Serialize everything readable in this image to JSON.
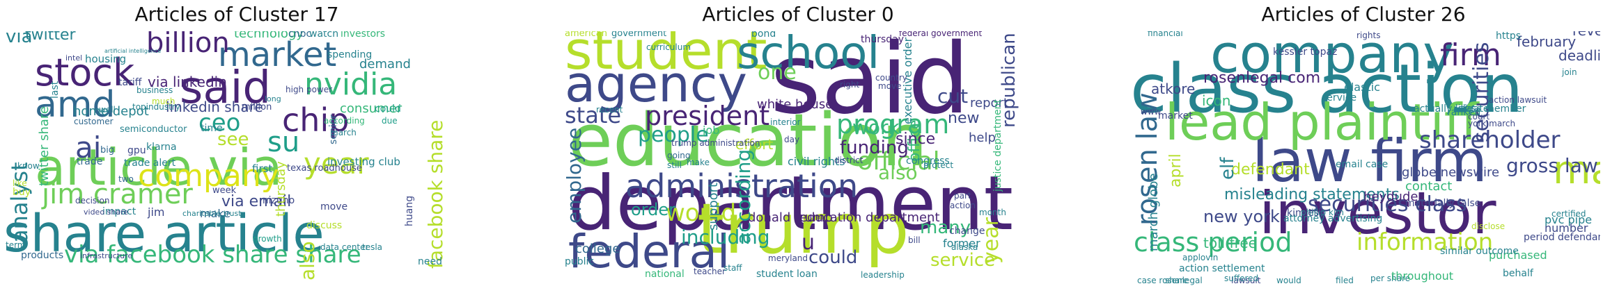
{
  "palette": {
    "dark_purple": "#482475",
    "indigo": "#3e4989",
    "blue": "#31688e",
    "teal": "#26828e",
    "green_teal": "#1f9e89",
    "green": "#35b779",
    "light_green": "#6ece58",
    "yellow_green": "#b5de2b",
    "yellow": "#dde318"
  },
  "panels": [
    {
      "title": "Articles of Cluster 17",
      "words": [
        {
          "text": "share article",
          "c": "teal"
        },
        {
          "text": "article via",
          "c": "light_green"
        },
        {
          "text": "said",
          "c": "dark_purple"
        },
        {
          "text": "stock",
          "c": "dark_purple"
        },
        {
          "text": "market",
          "c": "blue"
        },
        {
          "text": "amd",
          "c": "blue"
        },
        {
          "text": "nvidia",
          "c": "green"
        },
        {
          "text": "billion",
          "c": "dark_purple"
        },
        {
          "text": "chip",
          "c": "dark_purple"
        },
        {
          "text": "company",
          "c": "yellow"
        },
        {
          "text": "via facebook share share",
          "c": "green"
        },
        {
          "text": "ai",
          "c": "indigo"
        },
        {
          "text": "jim cramer",
          "c": "light_green"
        },
        {
          "text": "year",
          "c": "yellow_green"
        },
        {
          "text": "su",
          "c": "green_teal"
        },
        {
          "text": "analyst",
          "c": "teal"
        },
        {
          "text": "facebook share",
          "c": "yellow_green"
        },
        {
          "text": "ceo",
          "c": "green_teal"
        },
        {
          "text": "via",
          "c": "teal"
        },
        {
          "text": "twitter",
          "c": "teal"
        },
        {
          "text": "via linkedin",
          "c": "dark_purple"
        },
        {
          "text": "linkedin share",
          "c": "indigo"
        },
        {
          "text": "technology",
          "c": "green"
        },
        {
          "text": "cnbc",
          "c": "blue"
        },
        {
          "text": "watch",
          "c": "teal"
        },
        {
          "text": "investors",
          "c": "green"
        },
        {
          "text": "demand",
          "c": "teal"
        },
        {
          "text": "consumer",
          "c": "green"
        },
        {
          "text": "home depot",
          "c": "teal"
        },
        {
          "text": "see",
          "c": "yellow_green"
        },
        {
          "text": "via email",
          "c": "indigo"
        },
        {
          "text": "investing club",
          "c": "teal"
        },
        {
          "text": "texas roadhouse",
          "c": "indigo"
        },
        {
          "text": "first",
          "c": "teal"
        },
        {
          "text": "trade alert",
          "c": "teal"
        },
        {
          "text": "trade",
          "c": "blue"
        },
        {
          "text": "gpu",
          "c": "indigo"
        },
        {
          "text": "jim",
          "c": "indigo"
        },
        {
          "text": "make",
          "c": "blue"
        },
        {
          "text": "also",
          "c": "yellow_green"
        },
        {
          "text": "mizuho",
          "c": "indigo"
        },
        {
          "text": "thursday",
          "c": "yellow_green"
        },
        {
          "text": "twitter share",
          "c": "green"
        },
        {
          "text": "housing",
          "c": "teal"
        },
        {
          "text": "intel",
          "c": "indigo"
        },
        {
          "text": "tariff",
          "c": "indigo"
        },
        {
          "text": "business",
          "c": "teal"
        },
        {
          "text": "topindustry",
          "c": "teal"
        },
        {
          "text": "million",
          "c": "indigo"
        },
        {
          "text": "time",
          "c": "teal"
        },
        {
          "text": "semiconductor",
          "c": "teal"
        },
        {
          "text": "customer",
          "c": "blue"
        },
        {
          "text": "march",
          "c": "teal"
        },
        {
          "text": "according",
          "c": "green"
        },
        {
          "text": "senior",
          "c": "blue"
        },
        {
          "text": "spending",
          "c": "teal"
        },
        {
          "text": "could",
          "c": "green_teal"
        },
        {
          "text": "due",
          "c": "green_teal"
        },
        {
          "text": "huang",
          "c": "indigo"
        },
        {
          "text": "growth",
          "c": "green_teal"
        },
        {
          "text": "week",
          "c": "indigo"
        },
        {
          "text": "need",
          "c": "teal"
        },
        {
          "text": "products",
          "c": "blue"
        },
        {
          "text": "term",
          "c": "teal"
        },
        {
          "text": "impact",
          "c": "teal"
        },
        {
          "text": "big",
          "c": "blue"
        },
        {
          "text": "two",
          "c": "blue"
        },
        {
          "text": "decision",
          "c": "indigo"
        },
        {
          "text": "last",
          "c": "teal"
        },
        {
          "text": "know",
          "c": "teal"
        },
        {
          "text": "buy",
          "c": "yellow_green"
        },
        {
          "text": "like",
          "c": "yellow_green"
        },
        {
          "text": "well",
          "c": "teal"
        },
        {
          "text": "much",
          "c": "yellow_green"
        },
        {
          "text": "high power",
          "c": "indigo"
        },
        {
          "text": "long",
          "c": "teal"
        },
        {
          "text": "move",
          "c": "indigo"
        },
        {
          "text": "discuss",
          "c": "yellow_green"
        },
        {
          "text": "artificial intelligence",
          "c": "teal"
        },
        {
          "text": "klarna",
          "c": "teal"
        },
        {
          "text": "charitable trust",
          "c": "teal"
        },
        {
          "text": "video share",
          "c": "indigo"
        },
        {
          "text": "infrastructure",
          "c": "indigo"
        },
        {
          "text": "data center",
          "c": "teal"
        },
        {
          "text": "tesla",
          "c": "teal"
        }
      ]
    },
    {
      "title": "Articles of Cluster 0",
      "words": [
        {
          "text": "said",
          "c": "dark_purple"
        },
        {
          "text": "department",
          "c": "dark_purple"
        },
        {
          "text": "education",
          "c": "light_green"
        },
        {
          "text": "trump",
          "c": "yellow_green"
        },
        {
          "text": "student",
          "c": "yellow_green"
        },
        {
          "text": "agency",
          "c": "indigo"
        },
        {
          "text": "school",
          "c": "teal"
        },
        {
          "text": "federal",
          "c": "indigo"
        },
        {
          "text": "administration",
          "c": "indigo"
        },
        {
          "text": "state",
          "c": "indigo"
        },
        {
          "text": "president",
          "c": "dark_purple"
        },
        {
          "text": "program",
          "c": "green"
        },
        {
          "text": "official",
          "c": "light_green"
        },
        {
          "text": "employee",
          "c": "blue"
        },
        {
          "text": "people",
          "c": "green_teal"
        },
        {
          "text": "would",
          "c": "yellow_green"
        },
        {
          "text": "including",
          "c": "green_teal"
        },
        {
          "text": "order",
          "c": "green_teal"
        },
        {
          "text": "funding",
          "c": "dark_purple"
        },
        {
          "text": "cut",
          "c": "indigo"
        },
        {
          "text": "also",
          "c": "light_green"
        },
        {
          "text": "year",
          "c": "yellow_green"
        },
        {
          "text": "work",
          "c": "green"
        },
        {
          "text": "one",
          "c": "light_green"
        },
        {
          "text": "new",
          "c": "indigo"
        },
        {
          "text": "many",
          "c": "green"
        },
        {
          "text": "could",
          "c": "indigo"
        },
        {
          "text": "service",
          "c": "yellow_green"
        },
        {
          "text": "u",
          "c": "dark_purple"
        },
        {
          "text": "white house",
          "c": "dark_purple"
        },
        {
          "text": "donald trump",
          "c": "dark_purple"
        },
        {
          "text": "education department",
          "c": "dark_purple"
        },
        {
          "text": "office",
          "c": "green"
        },
        {
          "text": "executive order",
          "c": "teal"
        },
        {
          "text": "support",
          "c": "teal"
        },
        {
          "text": "college",
          "c": "blue"
        },
        {
          "text": "public",
          "c": "teal"
        },
        {
          "text": "according",
          "c": "green_teal"
        },
        {
          "text": "republican",
          "c": "indigo"
        },
        {
          "text": "since",
          "c": "dark_purple"
        },
        {
          "text": "report",
          "c": "indigo"
        },
        {
          "text": "help",
          "c": "indigo"
        },
        {
          "text": "american",
          "c": "yellow_green"
        },
        {
          "text": "government",
          "c": "teal"
        },
        {
          "text": "bond",
          "c": "teal"
        },
        {
          "text": "thursday",
          "c": "dark_purple"
        },
        {
          "text": "federal government",
          "c": "dark_purple"
        },
        {
          "text": "effort",
          "c": "yellow_green"
        },
        {
          "text": "job",
          "c": "green"
        },
        {
          "text": "justice department",
          "c": "green"
        },
        {
          "text": "congress",
          "c": "teal"
        },
        {
          "text": "civil rights",
          "c": "teal"
        },
        {
          "text": "trump administration",
          "c": "indigo"
        },
        {
          "text": "student loan",
          "c": "teal"
        },
        {
          "text": "national",
          "c": "green"
        },
        {
          "text": "former",
          "c": "teal"
        },
        {
          "text": "change",
          "c": "indigo"
        },
        {
          "text": "protect",
          "c": "teal"
        },
        {
          "text": "move",
          "c": "indigo"
        },
        {
          "text": "day",
          "c": "indigo"
        },
        {
          "text": "district",
          "c": "indigo"
        },
        {
          "text": "meryland",
          "c": "indigo"
        },
        {
          "text": "teacher",
          "c": "indigo"
        },
        {
          "text": "staff",
          "c": "teal"
        },
        {
          "text": "going",
          "c": "blue"
        },
        {
          "text": "interior",
          "c": "teal"
        },
        {
          "text": "country",
          "c": "indigo"
        },
        {
          "text": "recent",
          "c": "teal"
        },
        {
          "text": "right",
          "c": "indigo"
        },
        {
          "text": "curriculum",
          "c": "teal"
        },
        {
          "text": "alaska",
          "c": "teal"
        },
        {
          "text": "make",
          "c": "teal"
        },
        {
          "text": "still",
          "c": "teal"
        },
        {
          "text": "action",
          "c": "indigo"
        },
        {
          "text": "bill",
          "c": "indigo"
        },
        {
          "text": "part",
          "c": "indigo"
        },
        {
          "text": "month",
          "c": "teal"
        },
        {
          "text": "leadership",
          "c": "teal"
        }
      ]
    },
    {
      "title": "Articles of Cluster 26",
      "words": [
        {
          "text": "class action",
          "c": "teal"
        },
        {
          "text": "company",
          "c": "teal"
        },
        {
          "text": "law firm",
          "c": "indigo"
        },
        {
          "text": "investor",
          "c": "dark_purple"
        },
        {
          "text": "lead plaintiff",
          "c": "light_green"
        },
        {
          "text": "may",
          "c": "yellow_green"
        },
        {
          "text": "firm",
          "c": "dark_purple"
        },
        {
          "text": "rosen law",
          "c": "blue"
        },
        {
          "text": "shareholder",
          "c": "indigo"
        },
        {
          "text": "securities class",
          "c": "indigo"
        },
        {
          "text": "information",
          "c": "yellow_green"
        },
        {
          "text": "class period",
          "c": "green"
        },
        {
          "text": "rosenlegal com",
          "c": "dark_purple"
        },
        {
          "text": "gross law",
          "c": "indigo"
        },
        {
          "text": "deadline",
          "c": "indigo"
        },
        {
          "text": "february",
          "c": "indigo"
        },
        {
          "text": "revenue",
          "c": "indigo"
        },
        {
          "text": "defendant",
          "c": "yellow_green"
        },
        {
          "text": "new york",
          "c": "indigo"
        },
        {
          "text": "toll free",
          "c": "green"
        },
        {
          "text": "march globe",
          "c": "teal"
        },
        {
          "text": "misleading statements",
          "c": "teal"
        },
        {
          "text": "contact",
          "c": "green"
        },
        {
          "text": "securities",
          "c": "indigo"
        },
        {
          "text": "icon",
          "c": "green"
        },
        {
          "text": "atkore",
          "c": "indigo"
        },
        {
          "text": "elf",
          "c": "teal"
        },
        {
          "text": "april",
          "c": "yellow_green"
        },
        {
          "text": "heydude",
          "c": "dark_purple"
        },
        {
          "text": "globe newswire",
          "c": "indigo"
        },
        {
          "text": "elastic",
          "c": "teal"
        },
        {
          "text": "number",
          "c": "indigo"
        },
        {
          "text": "purchased",
          "c": "green"
        },
        {
          "text": "period defendants",
          "c": "indigo"
        },
        {
          "text": "pvc pipe",
          "c": "teal"
        },
        {
          "text": "behalf",
          "c": "teal"
        },
        {
          "text": "market",
          "c": "indigo"
        },
        {
          "text": "service",
          "c": "teal"
        },
        {
          "text": "kim esq",
          "c": "indigo"
        },
        {
          "text": "attorney advertising",
          "c": "teal"
        },
        {
          "text": "case rosenlegal",
          "c": "teal"
        },
        {
          "text": "share",
          "c": "teal"
        },
        {
          "text": "filed",
          "c": "teal"
        },
        {
          "text": "would",
          "c": "teal"
        },
        {
          "text": "lawsuit",
          "c": "indigo"
        },
        {
          "text": "class member",
          "c": "teal"
        },
        {
          "text": "actually litigate",
          "c": "teal"
        },
        {
          "text": "action settlement",
          "c": "teal"
        },
        {
          "text": "certified",
          "c": "teal"
        },
        {
          "text": "phillip kim",
          "c": "teal"
        },
        {
          "text": "per share",
          "c": "teal"
        },
        {
          "text": "suffered",
          "c": "teal"
        },
        {
          "text": "throughout",
          "c": "green"
        },
        {
          "text": "materially false",
          "c": "indigo"
        },
        {
          "text": "disclose",
          "c": "yellow_green"
        },
        {
          "text": "kessler topaz",
          "c": "indigo"
        },
        {
          "text": "financial",
          "c": "teal"
        },
        {
          "text": "rights",
          "c": "indigo"
        },
        {
          "text": "https",
          "c": "teal"
        },
        {
          "text": "www",
          "c": "indigo"
        },
        {
          "text": "ranked",
          "c": "teal"
        },
        {
          "text": "york march",
          "c": "indigo"
        },
        {
          "text": "court",
          "c": "indigo"
        },
        {
          "text": "email case",
          "c": "teal"
        },
        {
          "text": "action lawsuit",
          "c": "indigo"
        },
        {
          "text": "join",
          "c": "teal"
        },
        {
          "text": "similar outcome",
          "c": "teal"
        },
        {
          "text": "applovin",
          "c": "teal"
        }
      ]
    }
  ]
}
